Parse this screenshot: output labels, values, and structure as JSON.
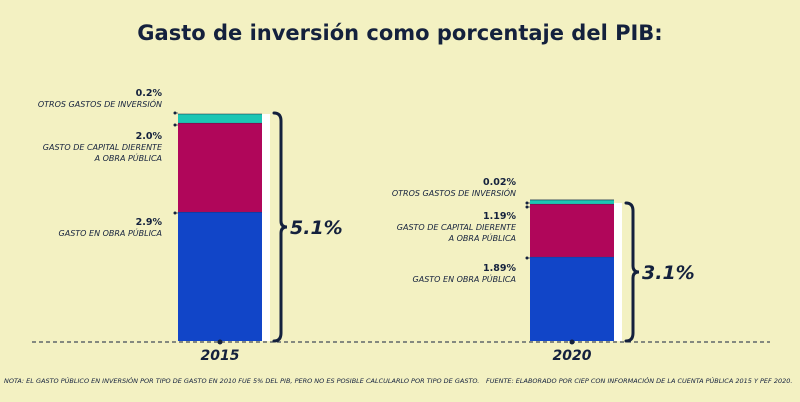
{
  "chart_data": {
    "type": "bar",
    "stacked": true,
    "title": "Gasto de inversión como porcentaje del PIB:",
    "unit": "% del PIB",
    "categories": [
      "2015",
      "2020"
    ],
    "series": [
      {
        "name": "GASTO EN OBRA PÚBLICA",
        "values": [
          2.9,
          1.89
        ],
        "labels": [
          "2.9%",
          "1.89%"
        ],
        "name_lines": [
          "GASTO EN OBRA PÚBLICA"
        ],
        "color": "#1145c8"
      },
      {
        "name": "GASTO DE CAPITAL DIERENTE A OBRA PÚBLICA",
        "values": [
          2.0,
          1.19
        ],
        "labels": [
          "2.0%",
          "1.19%"
        ],
        "name_lines": [
          "GASTO DE CAPITAL DIERENTE",
          "A OBRA PÚBLICA"
        ],
        "color": "#b0065a"
      },
      {
        "name": "OTROS GASTOS DE INVERSIÓN",
        "values": [
          0.2,
          0.02
        ],
        "labels": [
          "0.2%",
          "0.02%"
        ],
        "name_lines": [
          "OTROS GASTOS DE INVERSIÓN"
        ],
        "color": "#1cc6b4"
      }
    ],
    "totals": [
      "5.1%",
      "3.1%"
    ],
    "xlabel": "",
    "ylabel": "",
    "ylim": [
      0,
      5.1
    ]
  },
  "footnote_left": "NOTA: EL GASTO PÚBLICO EN INVERSIÓN POR TIPO DE GASTO EN 2010 FUE 5% DEL PIB, PERO NO ES POSIBLE CALCULARLO POR TIPO DE GASTO.",
  "footnote_right": "FUENTE: ELABORADO POR CIEP CON INFORMACIÓN DE LA CUENTA PÚBLICA 2015 Y PEF 2020.",
  "colors": {
    "background": "#f3f1c2",
    "text": "#14213d",
    "frame": "#ffffff"
  }
}
